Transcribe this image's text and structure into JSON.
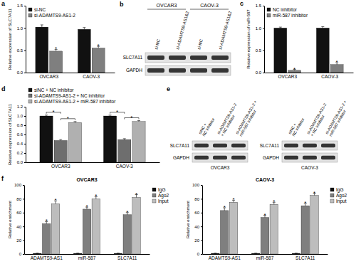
{
  "chart_data": [
    {
      "type": "bar",
      "panel": "a",
      "y_label": "Relative expression of SLC7A11",
      "categories": [
        "OVCAR3",
        "CAOV-3"
      ],
      "series": [
        {
          "name": "si-NC",
          "color": "#111111",
          "values": [
            1.02,
            0.97
          ],
          "errors": [
            0.05,
            0.04
          ]
        },
        {
          "name": "si-ADAMTS9-AS1-2",
          "color": "#7f7f7f",
          "values": [
            0.48,
            0.55
          ],
          "errors": [
            0.04,
            0.04
          ]
        }
      ],
      "ylim": [
        0,
        1.5
      ],
      "yticks": [
        {
          "value": 0,
          "label": "0.0"
        },
        0.5,
        {
          "value": 1,
          "label": "1.0"
        },
        1.5
      ],
      "legend": "top-left",
      "annotations": [
        {
          "text": "*",
          "category": 0,
          "series": 1
        },
        {
          "text": "*",
          "category": 1,
          "series": 1
        }
      ]
    },
    {
      "type": "bar",
      "panel": "c",
      "y_label": "Relative expression of miR-587",
      "categories": [
        "OVCAR3",
        "CAOV-3"
      ],
      "series": [
        {
          "name": "NC inhibitor",
          "color": "#111111",
          "values": [
            1.0,
            1.0
          ],
          "errors": [
            0.02,
            0.03
          ]
        },
        {
          "name": "miR-587 inhibitor",
          "color": "#7f7f7f",
          "values": [
            0.05,
            0.18
          ],
          "errors": [
            0.02,
            0.04
          ]
        }
      ],
      "ylim": [
        0,
        1.5
      ],
      "yticks": [
        {
          "value": 0,
          "label": "0.0"
        },
        0.5,
        {
          "value": 1,
          "label": "1.0"
        },
        1.5
      ],
      "legend": "top-left",
      "annotations": [
        {
          "text": "*",
          "category": 0,
          "series": 1
        },
        {
          "text": "*",
          "category": 1,
          "series": 1
        }
      ]
    },
    {
      "type": "bar",
      "panel": "d",
      "y_label": "Relative expression of SLC7A11",
      "categories": [
        "OVCAR3",
        "CAOV-3"
      ],
      "series": [
        {
          "name": "siNC + NC inhibitor",
          "color": "#111111",
          "values": [
            1.0,
            1.0
          ],
          "errors": [
            0.02,
            0.02
          ]
        },
        {
          "name": "si-ADAMTS9-AS1-2 + NC inhibitor",
          "color": "#6e6e6e",
          "values": [
            0.47,
            0.49
          ],
          "errors": [
            0.02,
            0.02
          ]
        },
        {
          "name": "si-ADAMTS9-AS1-2 + miR-587 inhibitor",
          "color": "#b0b0b0",
          "values": [
            0.86,
            0.88
          ],
          "errors": [
            0.02,
            0.02
          ]
        }
      ],
      "ylim": [
        0,
        1.2
      ],
      "yticks": [
        {
          "value": 0,
          "label": "0.0"
        },
        0.2,
        0.4,
        0.6,
        0.8,
        {
          "value": 1,
          "label": "1.0"
        },
        1.2
      ],
      "legend": "top",
      "annotations": [
        {
          "text": "*",
          "category": 0,
          "from": 0,
          "to": 1
        },
        {
          "text": "*",
          "category": 0,
          "from": 1,
          "to": 2
        },
        {
          "text": "*",
          "category": 1,
          "from": 0,
          "to": 1
        },
        {
          "text": "*",
          "category": 1,
          "from": 1,
          "to": 2
        }
      ]
    },
    {
      "type": "bar",
      "panel": "f",
      "title": "OVCAR3",
      "y_label": "Relative enrichment",
      "categories": [
        "ADAMTS9-AS1",
        "miR-587",
        "SLC7A11"
      ],
      "series": [
        {
          "name": "IgG",
          "color": "#111111",
          "values": [
            1,
            1,
            1
          ],
          "errors": [
            0.3,
            0.3,
            0.3
          ]
        },
        {
          "name": "Ago2",
          "color": "#7f7f7f",
          "values": [
            44,
            65,
            57
          ],
          "errors": [
            3,
            3,
            3
          ]
        },
        {
          "name": "Input",
          "color": "#bdbdbd",
          "values": [
            73,
            80,
            82
          ],
          "errors": [
            4,
            3,
            4
          ]
        }
      ],
      "ylim": [
        0,
        100
      ],
      "yticks": [
        0,
        20,
        40,
        60,
        80,
        100
      ],
      "legend": "right",
      "annotations": [
        {
          "text": "*",
          "category": 0,
          "series": 1
        },
        {
          "text": "*",
          "category": 0,
          "series": 2
        },
        {
          "text": "*",
          "category": 1,
          "series": 1
        },
        {
          "text": "*",
          "category": 1,
          "series": 2
        },
        {
          "text": "*",
          "category": 2,
          "series": 1
        },
        {
          "text": "*",
          "category": 2,
          "series": 2
        }
      ]
    },
    {
      "type": "bar",
      "title": "CAOV-3",
      "y_label": "Relative enrichment",
      "categories": [
        "ADAMTS9-AS1",
        "miR-587",
        "SLC7A11"
      ],
      "series": [
        {
          "name": "IgG",
          "color": "#111111",
          "values": [
            1,
            1,
            1
          ],
          "errors": [
            0.3,
            0.3,
            0.3
          ]
        },
        {
          "name": "Ago2",
          "color": "#7f7f7f",
          "values": [
            63,
            53,
            70
          ],
          "errors": [
            4,
            3,
            3
          ]
        },
        {
          "name": "Input",
          "color": "#bdbdbd",
          "values": [
            75,
            72,
            85
          ],
          "errors": [
            3,
            3,
            3
          ]
        }
      ],
      "ylim": [
        0,
        100
      ],
      "yticks": [
        0,
        20,
        40,
        60,
        80,
        100
      ],
      "legend": "right",
      "annotations": [
        {
          "text": "*",
          "category": 0,
          "series": 1
        },
        {
          "text": "*",
          "category": 0,
          "series": 2
        },
        {
          "text": "*",
          "category": 1,
          "series": 1
        },
        {
          "text": "*",
          "category": 1,
          "series": 2
        },
        {
          "text": "*",
          "category": 2,
          "series": 1
        },
        {
          "text": "*",
          "category": 2,
          "series": 2
        }
      ]
    }
  ],
  "blots": [
    {
      "panel": "b",
      "groups": [
        "OVCAR3",
        "CAOV-3"
      ],
      "lanes": [
        "si-NC",
        "si-ADAMTS9-AS1&2"
      ],
      "rows": [
        "SLC7A11",
        "GAPDH"
      ]
    },
    {
      "panel": "e",
      "groups": [
        "OVCAR3",
        "CAOV-3"
      ],
      "lanes": [
        [
          "siNC +",
          "NC inhibitor"
        ],
        [
          "si-ADAMTS9-AS1-2",
          "+ NC inhibitor"
        ],
        [
          "si-ADAMTS9-AS1-2 +",
          "miR-587 inhibitor"
        ]
      ],
      "rows": [
        "SLC7A11",
        "GAPDH"
      ]
    }
  ]
}
